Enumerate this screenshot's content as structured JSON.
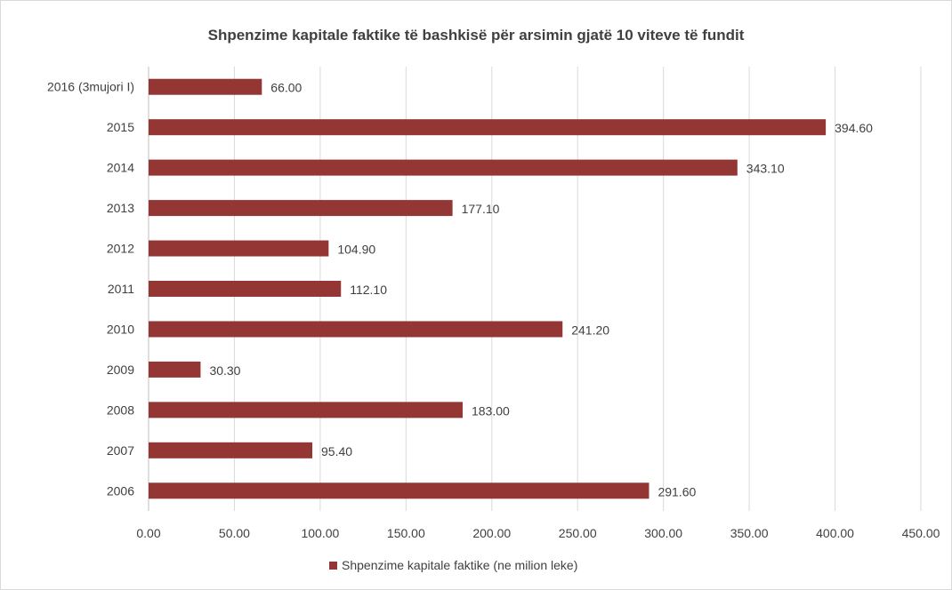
{
  "chart_data": {
    "type": "bar",
    "orientation": "horizontal",
    "title": "Shpenzime kapitale faktike të bashkisë për arsimin gjatë 10 viteve të fundit",
    "categories": [
      "2016 (3mujori I)",
      "2015",
      "2014",
      "2013",
      "2012",
      "2011",
      "2010",
      "2009",
      "2008",
      "2007",
      "2006"
    ],
    "series": [
      {
        "name": "Shpenzime kapitale faktike (ne milion leke)",
        "values": [
          66.0,
          394.6,
          343.1,
          177.1,
          104.9,
          112.1,
          241.2,
          30.3,
          183.0,
          95.4,
          291.6
        ],
        "data_labels": [
          "66.00",
          "394.60",
          "343.10",
          "177.10",
          "104.90",
          "112.10",
          "241.20",
          "30.30",
          "183.00",
          "95.40",
          "291.60"
        ],
        "color": "#943634"
      }
    ],
    "xlim": [
      0,
      450
    ],
    "x_ticks": [
      "0.00",
      "50.00",
      "100.00",
      "150.00",
      "200.00",
      "250.00",
      "300.00",
      "350.00",
      "400.00",
      "450.00"
    ],
    "xlabel": "",
    "ylabel": "",
    "grid": true,
    "legend_position": "bottom"
  }
}
